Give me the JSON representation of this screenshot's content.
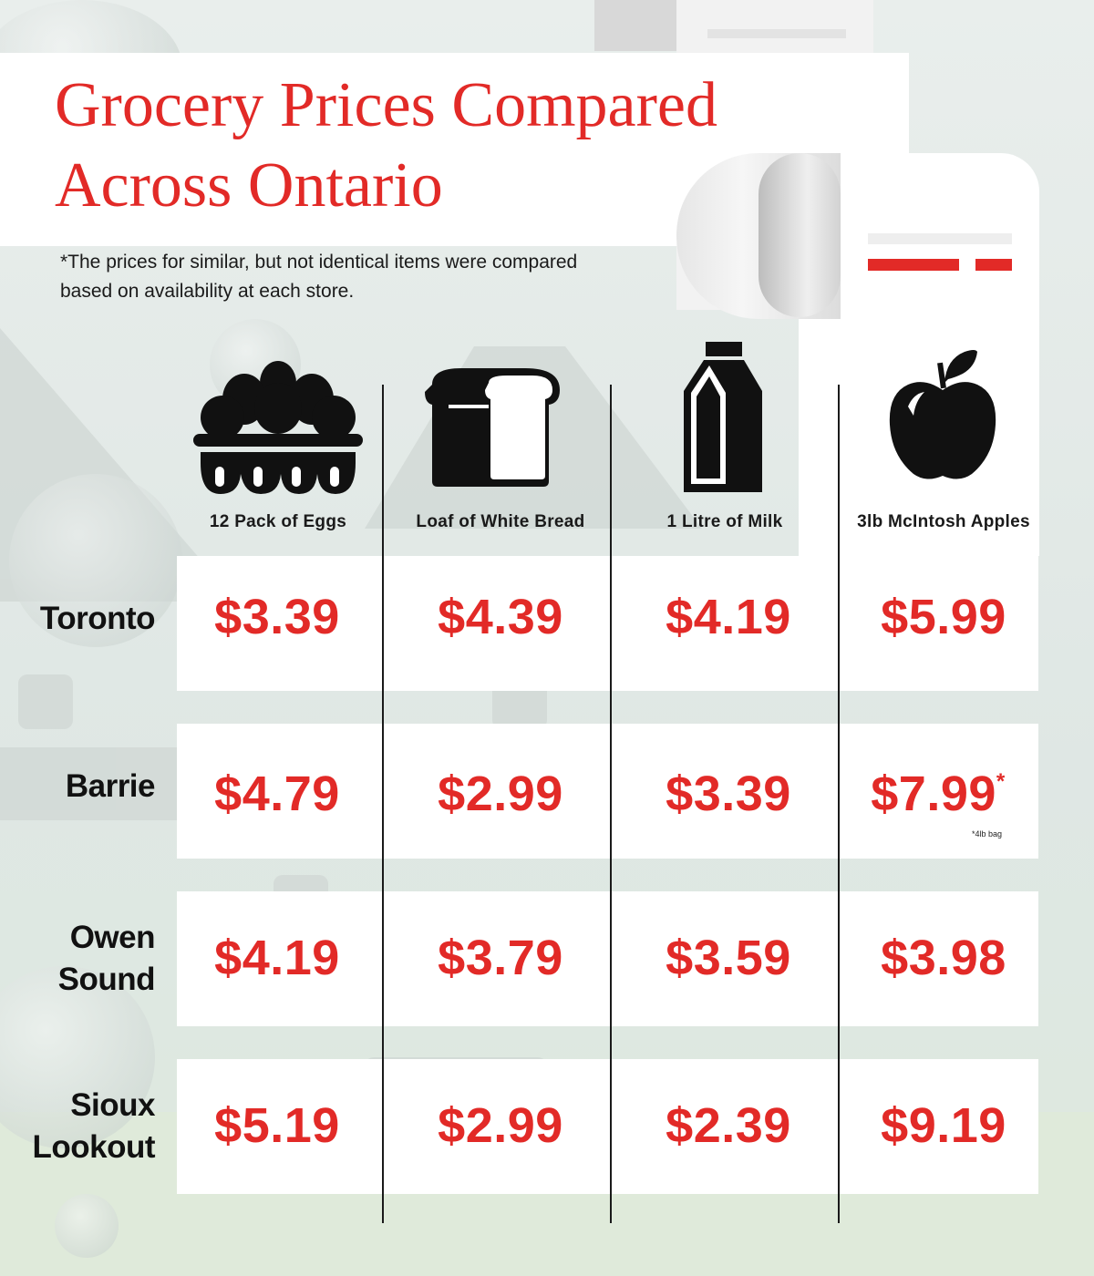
{
  "header": {
    "title": "Grocery Prices Compared Across Ontario",
    "note": "*The prices for similar, but not identical items were compared based on availability at each store."
  },
  "columns": [
    {
      "label": "12 Pack of Eggs",
      "icon": "egg-carton-icon"
    },
    {
      "label": "Loaf of White Bread",
      "icon": "bread-loaf-icon"
    },
    {
      "label": "1 Litre of Milk",
      "icon": "milk-carton-icon"
    },
    {
      "label": "3lb McIntosh Apples",
      "icon": "apple-icon"
    }
  ],
  "rows": [
    {
      "city": "Toronto",
      "prices": [
        "$3.39",
        "$4.39",
        "$4.19",
        "$5.99"
      ]
    },
    {
      "city": "Barrie",
      "prices": [
        "$4.79",
        "$2.99",
        "$3.39",
        "$7.99"
      ]
    },
    {
      "city": "Owen Sound",
      "prices": [
        "$4.19",
        "$3.79",
        "$3.59",
        "$3.98"
      ]
    },
    {
      "city": "Sioux Lookout",
      "prices": [
        "$5.19",
        "$2.99",
        "$2.39",
        "$9.19"
      ]
    }
  ],
  "barrie_apple_asterisk": "*",
  "barrie_apple_footnote": "*4lb bag",
  "colors": {
    "accent": "#e22a27",
    "text": "#1a1a1a",
    "panel": "#ffffff"
  }
}
